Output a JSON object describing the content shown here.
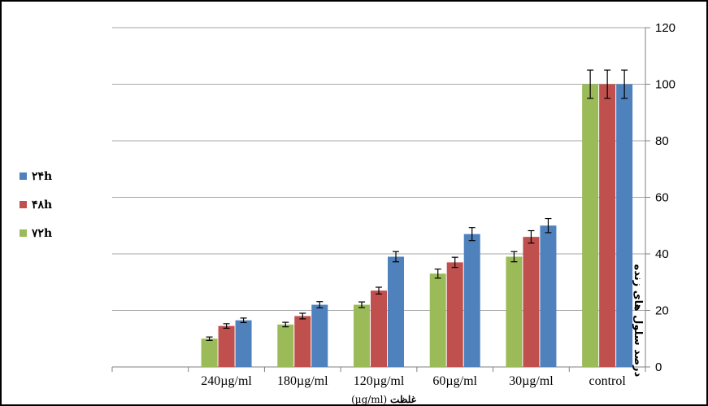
{
  "chart_data": {
    "type": "bar",
    "categories": [
      "240µg/ml",
      "180µg/ml",
      "120µg/ml",
      "60µg/ml",
      "30µg/ml",
      "control"
    ],
    "series": [
      {
        "name": "۷۲h",
        "color": "#9bbb59",
        "values": [
          10,
          15,
          22,
          33,
          39,
          100
        ],
        "errors": [
          0.6,
          0.8,
          1.0,
          1.6,
          1.8,
          5
        ]
      },
      {
        "name": "۴۸h",
        "color": "#c0504d",
        "values": [
          14.5,
          18,
          27,
          37,
          46,
          100
        ],
        "errors": [
          0.8,
          1.0,
          1.2,
          1.8,
          2.2,
          5
        ]
      },
      {
        "name": "۲۴h",
        "color": "#4f81bd",
        "values": [
          16.5,
          22,
          39,
          47,
          50,
          100
        ],
        "errors": [
          0.8,
          1.1,
          1.8,
          2.3,
          2.5,
          5
        ]
      }
    ],
    "xlabel_text": "غلظت",
    "xlabel_unit": "(µg/ml)",
    "ylabel": "درصد سلول های زنده",
    "ylim": [
      0,
      120
    ],
    "yticks": [
      0,
      20,
      40,
      60,
      80,
      100,
      120
    ],
    "grid": true,
    "legend_position": "left"
  }
}
